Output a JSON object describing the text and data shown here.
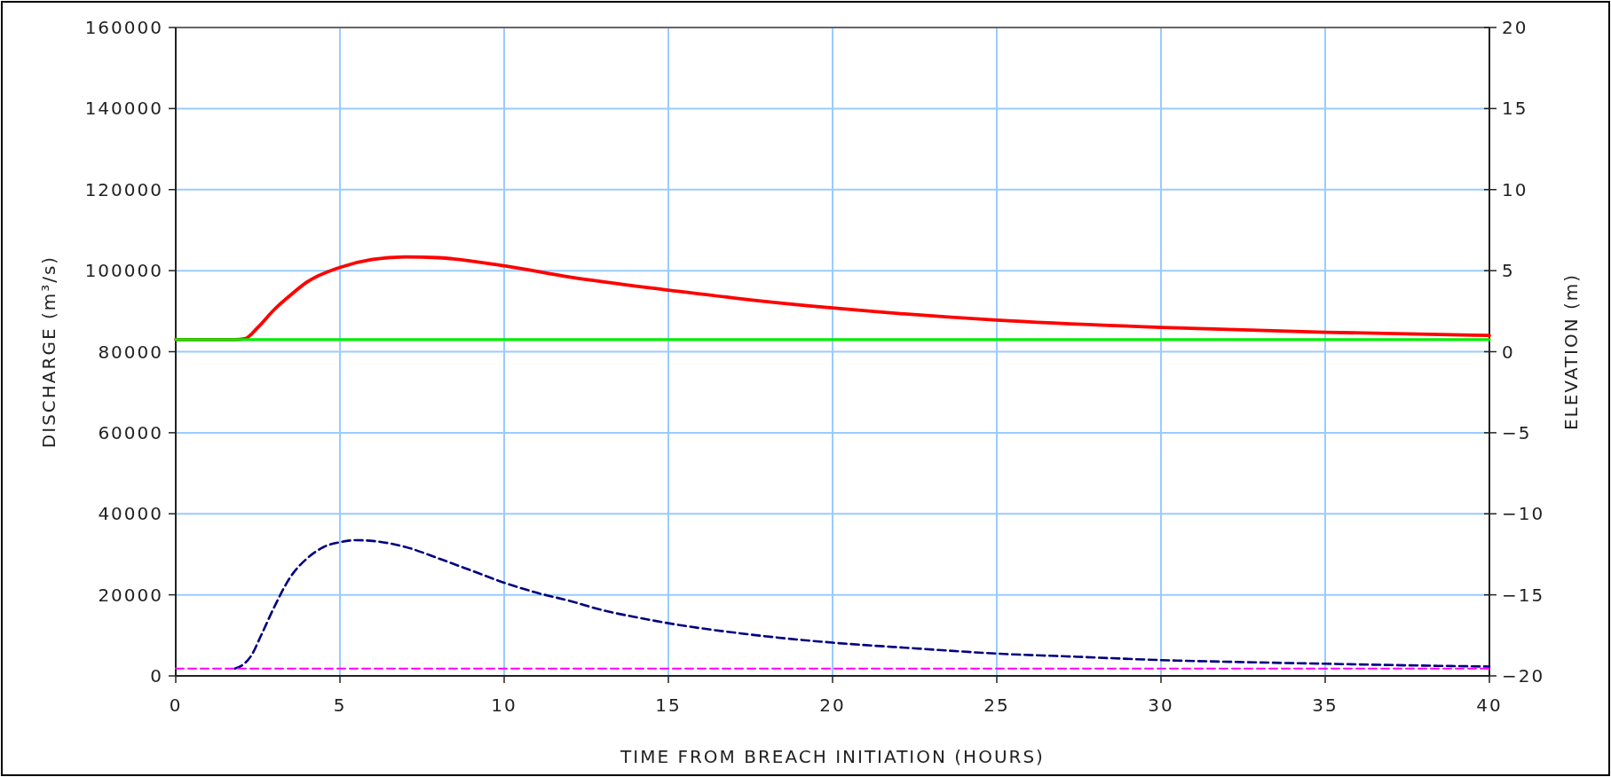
{
  "chart_data": {
    "type": "line",
    "xlabel": "TIME FROM BREACH INITIATION (HOURS)",
    "ylabel": "DISCHARGE (m³/s)",
    "y2label": "ELEVATION (m)",
    "xlim": [
      0,
      40
    ],
    "xticks": [
      0,
      5,
      10,
      15,
      20,
      25,
      30,
      35,
      40
    ],
    "ylim": [
      0,
      160000
    ],
    "yticks": [
      0,
      20000,
      40000,
      60000,
      80000,
      100000,
      120000,
      140000,
      160000
    ],
    "y2lim": [
      -20,
      20
    ],
    "y2ticks": [
      {
        "value": -20,
        "label": "−20"
      },
      {
        "value": -15,
        "label": "−15"
      },
      {
        "value": -10,
        "label": "−10"
      },
      {
        "value": -5,
        "label": "−5"
      },
      0,
      5,
      10,
      15,
      20
    ],
    "grid": true,
    "series": [
      {
        "color": "#ff0000",
        "axis": "y2",
        "line_style": "solid",
        "x": [
          0,
          1.8,
          2.1,
          2.5,
          3,
          3.5,
          4,
          5,
          6,
          7,
          8,
          10,
          12,
          15,
          17.5,
          20,
          25,
          30,
          35,
          40
        ],
        "values": [
          0.75,
          0.75,
          0.8,
          1.5,
          2.6,
          3.5,
          4.3,
          5.2,
          5.7,
          5.85,
          5.8,
          5.3,
          4.6,
          3.8,
          3.2,
          2.7,
          1.95,
          1.5,
          1.2,
          1.0
        ]
      },
      {
        "color": "#00ee00",
        "axis": "y2",
        "line_style": "solid",
        "x": [
          0,
          40
        ],
        "values": [
          0.75,
          0.75
        ]
      },
      {
        "color": "#000080",
        "axis": "y",
        "line_style": "dashed",
        "x": [
          1.8,
          2,
          2.3,
          2.6,
          3,
          3.5,
          4,
          4.5,
          5,
          5.5,
          6,
          7,
          8,
          9,
          10,
          11,
          12,
          13,
          14,
          15,
          17.5,
          20,
          22.5,
          25,
          27.5,
          30,
          32.5,
          35,
          37.5,
          40
        ],
        "values": [
          1800,
          2500,
          5000,
          10000,
          17000,
          24500,
          29000,
          31800,
          33000,
          33500,
          33300,
          31800,
          29000,
          26000,
          23000,
          20500,
          18500,
          16200,
          14500,
          13000,
          10200,
          8200,
          6800,
          5500,
          4700,
          3900,
          3400,
          3000,
          2600,
          2300
        ]
      },
      {
        "color": "#ff00ff",
        "axis": "y",
        "line_style": "dashed",
        "x": [
          0,
          40
        ],
        "values": [
          1800,
          1800
        ]
      }
    ]
  }
}
